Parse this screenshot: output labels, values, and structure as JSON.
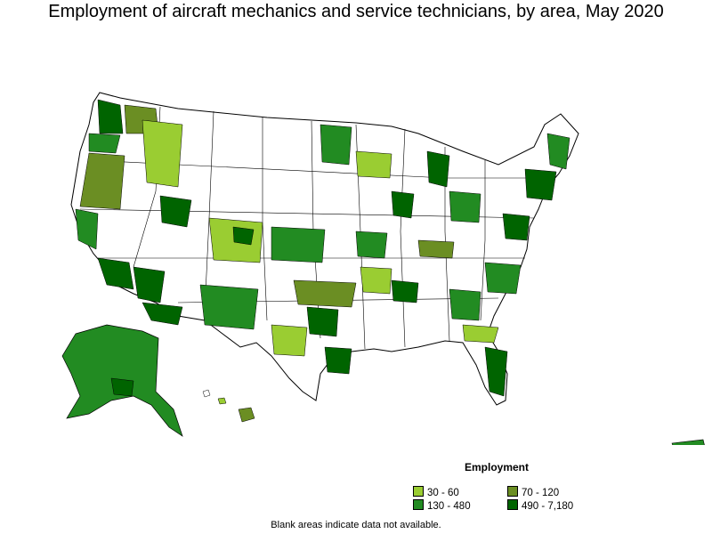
{
  "title": "Employment of aircraft mechanics and service technicians, by area, May 2020",
  "legend": {
    "title": "Employment",
    "items": [
      {
        "label": "30 - 60",
        "color": "#9acd32"
      },
      {
        "label": "70 - 120",
        "color": "#6b8e23"
      },
      {
        "label": "130 - 480",
        "color": "#228b22"
      },
      {
        "label": "490 - 7,180",
        "color": "#006400"
      }
    ]
  },
  "note": "Blank areas indicate data not available."
}
